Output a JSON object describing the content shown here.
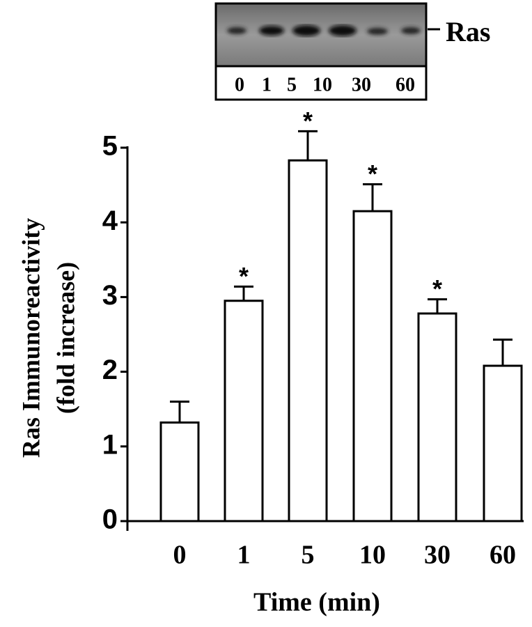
{
  "chart_data": {
    "type": "bar",
    "categories": [
      "0",
      "1",
      "5",
      "10",
      "30",
      "60"
    ],
    "values": [
      1.32,
      2.95,
      4.83,
      4.15,
      2.78,
      2.08
    ],
    "errors": [
      0.28,
      0.19,
      0.39,
      0.36,
      0.19,
      0.35
    ],
    "significant": [
      false,
      true,
      true,
      true,
      true,
      false
    ],
    "significance_marker": "*",
    "color": "#ffffff",
    "ylim": [
      0,
      5
    ],
    "yticks": [
      0,
      1,
      2,
      3,
      4,
      5
    ],
    "y_label": [
      "Ras Immunoreactivity",
      "(fold increase)"
    ],
    "x_label": "Time (min)",
    "blot": {
      "label": "Ras",
      "lanes": [
        "0",
        "1",
        "5",
        "10",
        "30",
        "60"
      ]
    }
  }
}
